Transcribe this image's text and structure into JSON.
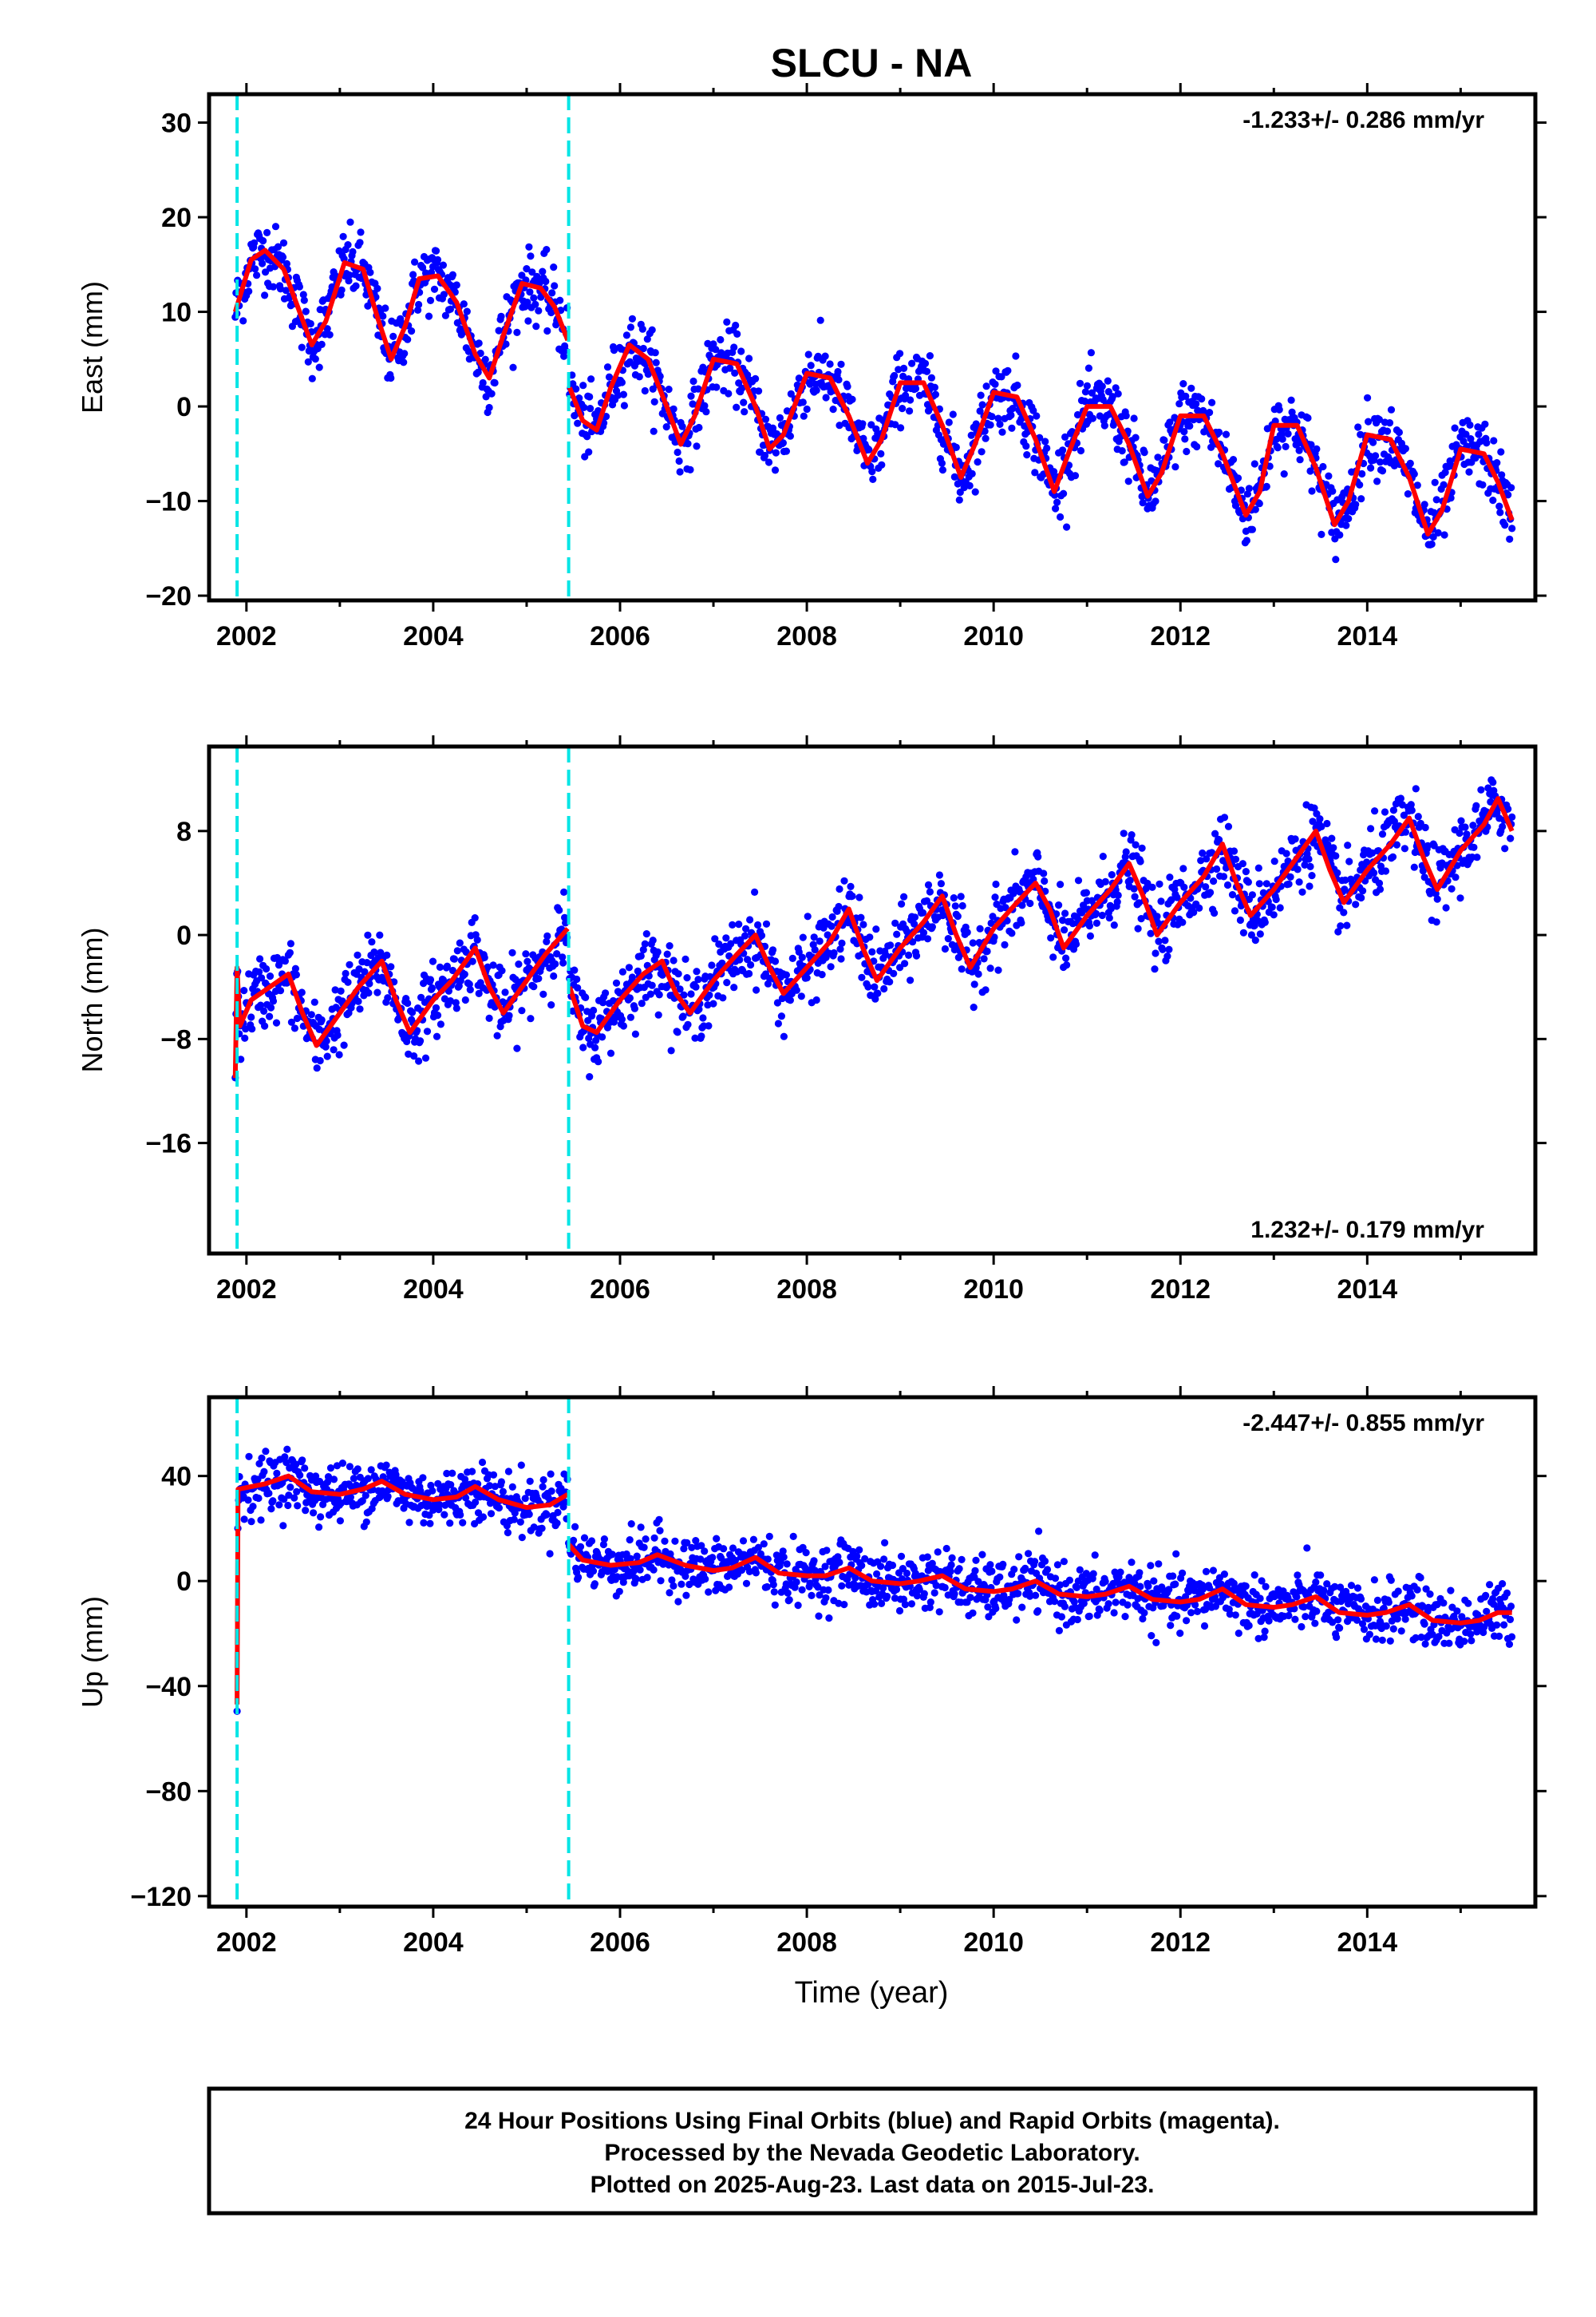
{
  "figure": {
    "title": "SLCU - NA",
    "xlabel": "Time (year)",
    "footnote": [
      "24 Hour Positions Using Final Orbits (blue) and Rapid Orbits (magenta).",
      "Processed by the Nevada Geodetic Laboratory.",
      "Plotted on 2025-Aug-23. Last data on 2015-Jul-23."
    ],
    "colors": {
      "data": "#0000ff",
      "model": "#ff0000",
      "event_line": "#00e5e5",
      "frame": "#000000"
    }
  },
  "chart_data": [
    {
      "type": "scatter",
      "name": "east",
      "ylabel": "East (mm)",
      "rate": "-1.233+/- 0.286 mm/yr",
      "rate_position": "top-right",
      "xlim": [
        2001.6,
        2015.8
      ],
      "ylim": [
        -20.5,
        33
      ],
      "x_ticks": [
        2002,
        2004,
        2006,
        2008,
        2010,
        2012,
        2014
      ],
      "x_tick_labels": [
        "2002",
        "2004",
        "2006",
        "2008",
        "2010",
        "2012",
        "2014"
      ],
      "y_ticks": [
        -20,
        -10,
        0,
        10,
        20,
        30
      ],
      "y_tick_labels": [
        "−20",
        "−10",
        "0",
        "10",
        "20",
        "30"
      ],
      "event_lines": [
        2001.9,
        2005.45
      ],
      "model": {
        "segments": [
          {
            "x": [
              2001.88,
              2002.05,
              2002.2,
              2002.4,
              2002.55,
              2002.7,
              2002.85,
              2003.05,
              2003.25,
              2003.4,
              2003.55,
              2003.7,
              2003.85,
              2004.05,
              2004.25,
              2004.45,
              2004.6,
              2004.75,
              2004.95,
              2005.15,
              2005.3,
              2005.44
            ],
            "y": [
              10,
              15.5,
              16.5,
              14.5,
              10.5,
              6.5,
              9,
              15.2,
              14.5,
              9.5,
              5,
              8.5,
              13.5,
              13.8,
              11,
              5.5,
              3,
              7.5,
              13,
              12.5,
              10.5,
              7
            ]
          },
          {
            "x": [
              2005.46,
              2005.6,
              2005.75,
              2005.9,
              2006.1,
              2006.3,
              2006.5,
              2006.65,
              2006.8,
              2007.0,
              2007.25,
              2007.45,
              2007.6,
              2007.75,
              2008.0,
              2008.25,
              2008.45,
              2008.65,
              2008.8,
              2009.0,
              2009.25,
              2009.45,
              2009.65,
              2009.8,
              2010.0,
              2010.25,
              2010.45,
              2010.65,
              2010.8,
              2011.0,
              2011.25,
              2011.45,
              2011.65,
              2011.8,
              2012.0,
              2012.25,
              2012.45,
              2012.7,
              2012.85,
              2013.0,
              2013.25,
              2013.45,
              2013.65,
              2013.8,
              2014.0,
              2014.25,
              2014.45,
              2014.65,
              2014.8,
              2015.0,
              2015.25,
              2015.4,
              2015.55
            ],
            "y": [
              2,
              -1.5,
              -2.5,
              2,
              6.5,
              5,
              0,
              -4,
              -1,
              5,
              4.5,
              0,
              -4.5,
              -3,
              3.5,
              3,
              -1,
              -6,
              -3.5,
              2.5,
              2.5,
              -2,
              -7.5,
              -4,
              1.5,
              1,
              -3.5,
              -9,
              -5,
              0,
              0,
              -4,
              -9.5,
              -7,
              -1,
              -1,
              -5,
              -11.5,
              -9,
              -2,
              -2,
              -6.5,
              -12.5,
              -10,
              -3,
              -3.5,
              -7.5,
              -13.5,
              -11,
              -4.5,
              -5,
              -8,
              -12
            ]
          }
        ]
      }
    },
    {
      "type": "scatter",
      "name": "north",
      "ylabel": "North (mm)",
      "rate": "1.232+/- 0.179 mm/yr",
      "rate_position": "bottom-right",
      "xlim": [
        2001.6,
        2015.8
      ],
      "ylim": [
        -24.5,
        14.5
      ],
      "x_ticks": [
        2002,
        2004,
        2006,
        2008,
        2010,
        2012,
        2014
      ],
      "x_tick_labels": [
        "2002",
        "2004",
        "2006",
        "2008",
        "2010",
        "2012",
        "2014"
      ],
      "y_ticks": [
        -16,
        -8,
        0,
        8
      ],
      "y_tick_labels": [
        "−16",
        "−8",
        "0",
        "8"
      ],
      "event_lines": [
        2001.9,
        2005.45
      ],
      "model": {
        "segments": [
          {
            "x": [
              2001.88,
              2001.9,
              2001.93,
              2002.05,
              2002.25,
              2002.45,
              2002.6,
              2002.75,
              2003.0,
              2003.2,
              2003.45,
              2003.6,
              2003.75,
              2004.0,
              2004.2,
              2004.45,
              2004.6,
              2004.75,
              2005.0,
              2005.2,
              2005.44
            ],
            "y": [
              -11,
              -2.5,
              -7,
              -5,
              -4,
              -3,
              -6,
              -8.5,
              -6,
              -4,
              -2,
              -5,
              -7.5,
              -5,
              -3.5,
              -1,
              -4,
              -6,
              -3.5,
              -1.5,
              0.5
            ]
          },
          {
            "x": [
              2005.46,
              2005.6,
              2005.75,
              2006.0,
              2006.25,
              2006.45,
              2006.6,
              2006.75,
              2007.0,
              2007.25,
              2007.45,
              2007.6,
              2007.75,
              2008.0,
              2008.25,
              2008.45,
              2008.6,
              2008.75,
              2009.0,
              2009.25,
              2009.45,
              2009.6,
              2009.75,
              2010.0,
              2010.25,
              2010.45,
              2010.6,
              2010.75,
              2011.0,
              2011.25,
              2011.45,
              2011.6,
              2011.75,
              2012.0,
              2012.25,
              2012.45,
              2012.6,
              2012.75,
              2013.0,
              2013.25,
              2013.45,
              2013.6,
              2013.75,
              2014.0,
              2014.25,
              2014.45,
              2014.6,
              2014.75,
              2015.0,
              2015.25,
              2015.4,
              2015.55
            ],
            "y": [
              -4,
              -7,
              -7.5,
              -5,
              -3,
              -2,
              -4.5,
              -6,
              -3.5,
              -1.5,
              0,
              -2.5,
              -4.5,
              -2.5,
              -0.5,
              2,
              -1,
              -3.5,
              -1,
              1,
              3,
              0,
              -2.5,
              0.5,
              2.5,
              4,
              2,
              -1,
              1.5,
              3.5,
              5.5,
              3,
              0,
              2.5,
              4.5,
              7,
              4,
              1.5,
              3.5,
              6,
              8,
              5,
              2.5,
              5,
              7,
              9,
              6,
              3.5,
              6.5,
              8.5,
              10.5,
              8
            ]
          }
        ]
      }
    },
    {
      "type": "scatter",
      "name": "up",
      "ylabel": "Up (mm)",
      "rate": "-2.447+/- 0.855 mm/yr",
      "rate_position": "top-right",
      "xlim": [
        2001.6,
        2015.8
      ],
      "ylim": [
        -124,
        70
      ],
      "x_ticks": [
        2002,
        2004,
        2006,
        2008,
        2010,
        2012,
        2014
      ],
      "x_tick_labels": [
        "2002",
        "2004",
        "2006",
        "2008",
        "2010",
        "2012",
        "2014"
      ],
      "y_ticks": [
        -120,
        -80,
        -40,
        0,
        40
      ],
      "y_tick_labels": [
        "−120",
        "−80",
        "−40",
        "0",
        "40"
      ],
      "event_lines": [
        2001.9,
        2005.45
      ],
      "model": {
        "segments": [
          {
            "x": [
              2001.9,
              2001.91,
              2001.92,
              2002.2,
              2002.45,
              2002.7,
              2003.0,
              2003.25,
              2003.45,
              2003.7,
              2004.0,
              2004.25,
              2004.45,
              2004.7,
              2005.0,
              2005.25,
              2005.44
            ],
            "y": [
              -47,
              35,
              35,
              37,
              40,
              34,
              33,
              35,
              38,
              33,
              31,
              32,
              36,
              31,
              28,
              29,
              33
            ]
          },
          {
            "x": [
              2005.45,
              2005.6,
              2005.9,
              2006.2,
              2006.4,
              2006.7,
              2007.0,
              2007.2,
              2007.45,
              2007.7,
              2008.0,
              2008.2,
              2008.45,
              2008.7,
              2009.0,
              2009.2,
              2009.45,
              2009.7,
              2010.0,
              2010.2,
              2010.45,
              2010.7,
              2011.0,
              2011.2,
              2011.45,
              2011.7,
              2012.0,
              2012.2,
              2012.45,
              2012.7,
              2013.0,
              2013.2,
              2013.45,
              2013.7,
              2014.0,
              2014.2,
              2014.45,
              2014.7,
              2015.0,
              2015.2,
              2015.4,
              2015.55
            ],
            "y": [
              14,
              8,
              6,
              7,
              10,
              6,
              4,
              5,
              9,
              3,
              2,
              2,
              5,
              0,
              -1,
              0,
              2,
              -3,
              -4,
              -3,
              0,
              -5,
              -6,
              -5,
              -2,
              -7,
              -8,
              -7,
              -3,
              -9,
              -10,
              -9,
              -6,
              -12,
              -13,
              -12,
              -9,
              -15,
              -16,
              -15,
              -12,
              -12
            ]
          }
        ]
      }
    }
  ]
}
